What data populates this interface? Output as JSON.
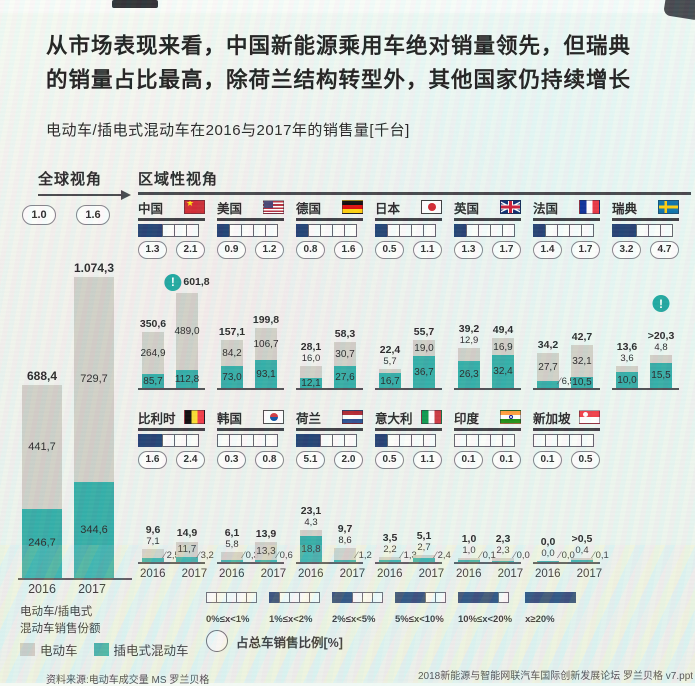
{
  "title": "从市场表现来看，中国新能源乘用车绝对销量领先，但瑞典的销量占比最高，除荷兰结构转型外，其他国家仍持续增长",
  "subtitle": "电动车/插电式混动车在2016与2017年的销售量[千台]",
  "years": [
    "2016",
    "2017"
  ],
  "legend": {
    "ev": "电动车",
    "phev": "插电式混动车",
    "circle": "占总车销售比例[%]"
  },
  "colors": {
    "ev": "#c9c8c0",
    "phev": "#2aa9a3",
    "square_filled": "#17376d",
    "alert": "#14a39c"
  },
  "source_left": "资料来源:电动车成交量 MS 罗兰贝格",
  "source_right": "2018新能源与智能网联汽车国际创新发展论坛 罗兰贝格 v7.ppt",
  "chart_data": {
    "type": "bar",
    "unit": "千台",
    "title": "电动车/插电式混动车在2016与2017年的销售量[千台]",
    "stacked_series": [
      "电动车",
      "插电式混动车"
    ],
    "global": {
      "label": "全球视角",
      "axis_label_1": "电动车/插电式",
      "axis_label_2": "混动车销售份额",
      "shares": [
        "1.0",
        "1.6"
      ],
      "bars": [
        {
          "year": "2016",
          "total": 688.4,
          "ev": 441.7,
          "phev": 246.7,
          "total_label": "688,4",
          "ev_label": "441,7",
          "phev_label": "246,7"
        },
        {
          "year": "2017",
          "total": 1074.3,
          "ev": 729.7,
          "phev": 344.6,
          "total_label": "1.074,3",
          "ev_label": "729,7",
          "phev_label": "344,6"
        }
      ]
    },
    "regional": {
      "label": "区域性视角",
      "share_categories": [
        "0%≤x<1%",
        "1%≤x<2%",
        "2%≤x<5%",
        "5%≤x<10%",
        "10%≤x<20%",
        "x≥20%"
      ],
      "rows": [
        [
          {
            "name": "中国",
            "flag": "cn",
            "filled": 2,
            "shares": [
              "1.3",
              "2.1"
            ],
            "bars": [
              {
                "year": "2016",
                "total": 350.6,
                "ev": 264.9,
                "phev": 85.7,
                "total_label": "350,6",
                "ev_label": "264,9",
                "phev_label": "85,7"
              },
              {
                "year": "2017",
                "total": 601.8,
                "ev": 489.0,
                "phev": 112.8,
                "total_label": "601,8",
                "ev_label": "489,0",
                "phev_label": "112,8",
                "alert": "inline"
              }
            ]
          },
          {
            "name": "美国",
            "flag": "us",
            "filled": 1,
            "shares": [
              "0.9",
              "1.2"
            ],
            "bars": [
              {
                "year": "2016",
                "total": 157.1,
                "ev": 84.2,
                "phev": 73.0,
                "total_label": "157,1",
                "ev_label": "84,2",
                "phev_label": "73,0"
              },
              {
                "year": "2017",
                "total": 199.8,
                "ev": 106.7,
                "phev": 93.1,
                "total_label": "199,8",
                "ev_label": "106,7",
                "phev_label": "93,1"
              }
            ]
          },
          {
            "name": "德国",
            "flag": "de",
            "filled": 1,
            "shares": [
              "0.8",
              "1.6"
            ],
            "bars": [
              {
                "year": "2016",
                "total": 28.1,
                "ev": 16.0,
                "phev": 12.1,
                "total_label": "28,1",
                "ev_label": "16,0",
                "phev_label": "12,1"
              },
              {
                "year": "2017",
                "total": 58.3,
                "ev": 30.7,
                "phev": 27.6,
                "total_label": "58,3",
                "ev_label": "30,7",
                "phev_label": "27,6"
              }
            ]
          },
          {
            "name": "日本",
            "flag": "jp",
            "filled": 1,
            "shares": [
              "0.5",
              "1.1"
            ],
            "bars": [
              {
                "year": "2016",
                "total": 22.4,
                "ev": 5.7,
                "phev": 16.7,
                "total_label": "22,4",
                "ev_label": "5,7",
                "phev_label": "16,7"
              },
              {
                "year": "2017",
                "total": 55.7,
                "ev": 19.0,
                "phev": 36.7,
                "total_label": "55,7",
                "ev_label": "19,0",
                "phev_label": "36,7"
              }
            ]
          },
          {
            "name": "英国",
            "flag": "gb",
            "filled": 1,
            "shares": [
              "1.3",
              "1.7"
            ],
            "bars": [
              {
                "year": "2016",
                "total": 39.2,
                "ev": 12.9,
                "phev": 26.3,
                "total_label": "39,2",
                "ev_label": "12,9",
                "phev_label": "26,3"
              },
              {
                "year": "2017",
                "total": 49.4,
                "ev": 16.9,
                "phev": 32.4,
                "total_label": "49,4",
                "ev_label": "16,9",
                "phev_label": "32,4"
              }
            ]
          },
          {
            "name": "法国",
            "flag": "fr",
            "filled": 1,
            "shares": [
              "1.4",
              "1.7"
            ],
            "bars": [
              {
                "year": "2016",
                "total": 34.2,
                "ev": 27.7,
                "phev": 6.5,
                "total_label": "34,2",
                "ev_label": "27,7",
                "phev_label": "6,5"
              },
              {
                "year": "2017",
                "total": 42.7,
                "ev": 32.1,
                "phev": 10.5,
                "total_label": "42,7",
                "ev_label": "32,1",
                "phev_label": "10,5"
              }
            ]
          },
          {
            "name": "瑞典",
            "flag": "se",
            "filled": 2,
            "shares": [
              "3.2",
              "4.7"
            ],
            "bars": [
              {
                "year": "2016",
                "total": 13.6,
                "ev": 3.6,
                "phev": 10.0,
                "total_label": "13,6",
                "ev_label": "3,6",
                "phev_label": "10,0"
              },
              {
                "year": "2017",
                "total": 20.3,
                "ev": 4.8,
                "phev": 15.5,
                "total_label": ">20,3",
                "ev_label": "4,8",
                "phev_label": "15,5",
                "alert": "above"
              }
            ]
          }
        ],
        [
          {
            "name": "比利时",
            "flag": "be",
            "filled": 2,
            "shares": [
              "1.6",
              "2.4"
            ],
            "bars": [
              {
                "year": "2016",
                "total": 9.6,
                "ev": 7.1,
                "phev": 2.5,
                "total_label": "9,6",
                "ev_label": "7,1",
                "phev_label": "2,5"
              },
              {
                "year": "2017",
                "total": 14.9,
                "ev": 11.7,
                "phev": 3.2,
                "total_label": "14,9",
                "ev_label": "11,7",
                "phev_label": "3,2"
              }
            ]
          },
          {
            "name": "韩国",
            "flag": "kr",
            "filled": 0,
            "shares": [
              "0.3",
              "0.8"
            ],
            "bars": [
              {
                "year": "2016",
                "total": 6.1,
                "ev": 5.8,
                "phev": 0.3,
                "total_label": "6,1",
                "ev_label": "5,8",
                "phev_label": "0,3"
              },
              {
                "year": "2017",
                "total": 13.9,
                "ev": 13.3,
                "phev": 0.6,
                "total_label": "13,9",
                "ev_label": "13,3",
                "phev_label": "0,6"
              }
            ]
          },
          {
            "name": "荷兰",
            "flag": "nl",
            "filled": 2,
            "shares": [
              "5.1",
              "2.0"
            ],
            "bars": [
              {
                "year": "2016",
                "total": 23.1,
                "ev": 4.3,
                "phev": 18.8,
                "total_label": "23,1",
                "ev_label": "4,3",
                "phev_label": "18,8"
              },
              {
                "year": "2017",
                "total": 9.7,
                "ev": 8.6,
                "phev": 1.2,
                "total_label": "9,7",
                "ev_label": "8,6",
                "phev_label": "1,2"
              }
            ]
          },
          {
            "name": "意大利",
            "flag": "it",
            "filled": 1,
            "shares": [
              "0.5",
              "1.1"
            ],
            "bars": [
              {
                "year": "2016",
                "total": 3.5,
                "ev": 2.2,
                "phev": 1.3,
                "total_label": "3,5",
                "ev_label": "2,2",
                "phev_label": "1,3"
              },
              {
                "year": "2017",
                "total": 5.1,
                "ev": 2.7,
                "phev": 2.4,
                "total_label": "5,1",
                "ev_label": "2,7",
                "phev_label": "2,4"
              }
            ]
          },
          {
            "name": "印度",
            "flag": "ind",
            "filled": 0,
            "shares": [
              "0.1",
              "0.1"
            ],
            "bars": [
              {
                "year": "2016",
                "total": 1.0,
                "ev": 1.0,
                "phev": 0.1,
                "total_label": "1,0",
                "ev_label": "1,0",
                "phev_label": "0,1"
              },
              {
                "year": "2017",
                "total": 2.3,
                "ev": 2.3,
                "phev": 0.0,
                "total_label": "2,3",
                "ev_label": "2,3",
                "phev_label": "0,0"
              }
            ]
          },
          {
            "name": "新加坡",
            "flag": "sg",
            "filled": 0,
            "shares": [
              "0.1",
              "0.5"
            ],
            "bars": [
              {
                "year": "2016",
                "total": 0.0,
                "ev": 0.0,
                "phev": 0.0,
                "total_label": "0,0",
                "ev_label": "0,0",
                "phev_label": "0,0"
              },
              {
                "year": "2017",
                "total": 0.5,
                "ev": 0.4,
                "phev": 0.1,
                "total_label": ">0,5",
                "ev_label": "0,4",
                "phev_label": "0,1"
              }
            ]
          }
        ]
      ]
    }
  }
}
